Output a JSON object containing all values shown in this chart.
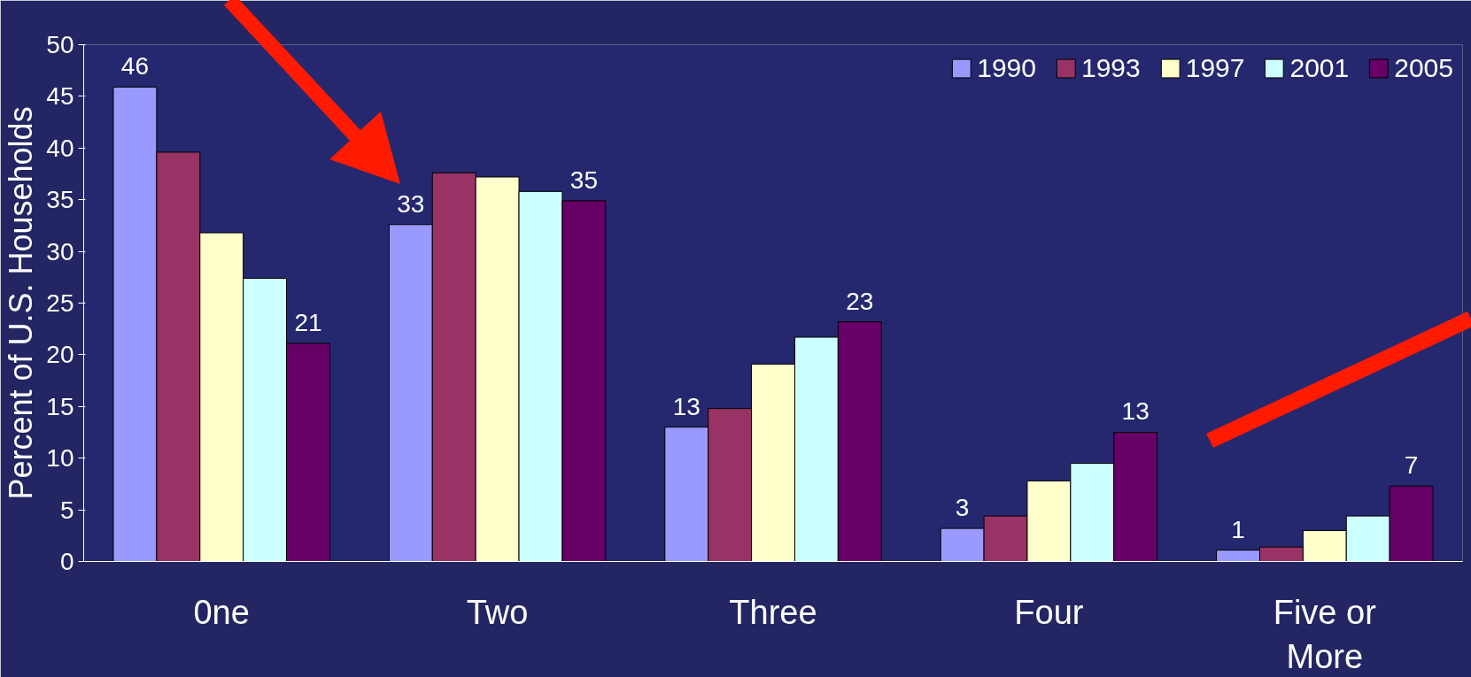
{
  "chart_data": {
    "type": "bar",
    "ylabel": "Percent of U.S. Households",
    "categories": [
      "0ne",
      "Two",
      "Three",
      "Four",
      "Five or More"
    ],
    "series": [
      {
        "name": "1990",
        "color": "#9999ff",
        "values": [
          45.9,
          32.6,
          13.0,
          3.2,
          1.1
        ],
        "value_labels": [
          "46",
          "33",
          "13",
          "3",
          "1"
        ]
      },
      {
        "name": "1993",
        "color": "#993366",
        "values": [
          39.6,
          37.6,
          14.8,
          4.4,
          1.4
        ],
        "value_labels": [
          null,
          null,
          null,
          null,
          null
        ]
      },
      {
        "name": "1997",
        "color": "#ffffcc",
        "values": [
          31.8,
          37.2,
          19.1,
          7.8,
          3.0
        ],
        "value_labels": [
          null,
          null,
          null,
          null,
          null
        ]
      },
      {
        "name": "2001",
        "color": "#ccffff",
        "values": [
          27.4,
          35.8,
          21.7,
          9.5,
          4.4
        ],
        "value_labels": [
          null,
          null,
          null,
          null,
          null
        ]
      },
      {
        "name": "2005",
        "color": "#660066",
        "values": [
          21.1,
          34.9,
          23.2,
          12.5,
          7.3
        ],
        "value_labels": [
          "21",
          "35",
          "23",
          "13",
          "7"
        ]
      }
    ],
    "ylim": [
      0,
      50
    ],
    "yticks": [
      0,
      5,
      10,
      15,
      20,
      25,
      30,
      35,
      40,
      45,
      50
    ],
    "grid": false,
    "legend": "top right"
  }
}
